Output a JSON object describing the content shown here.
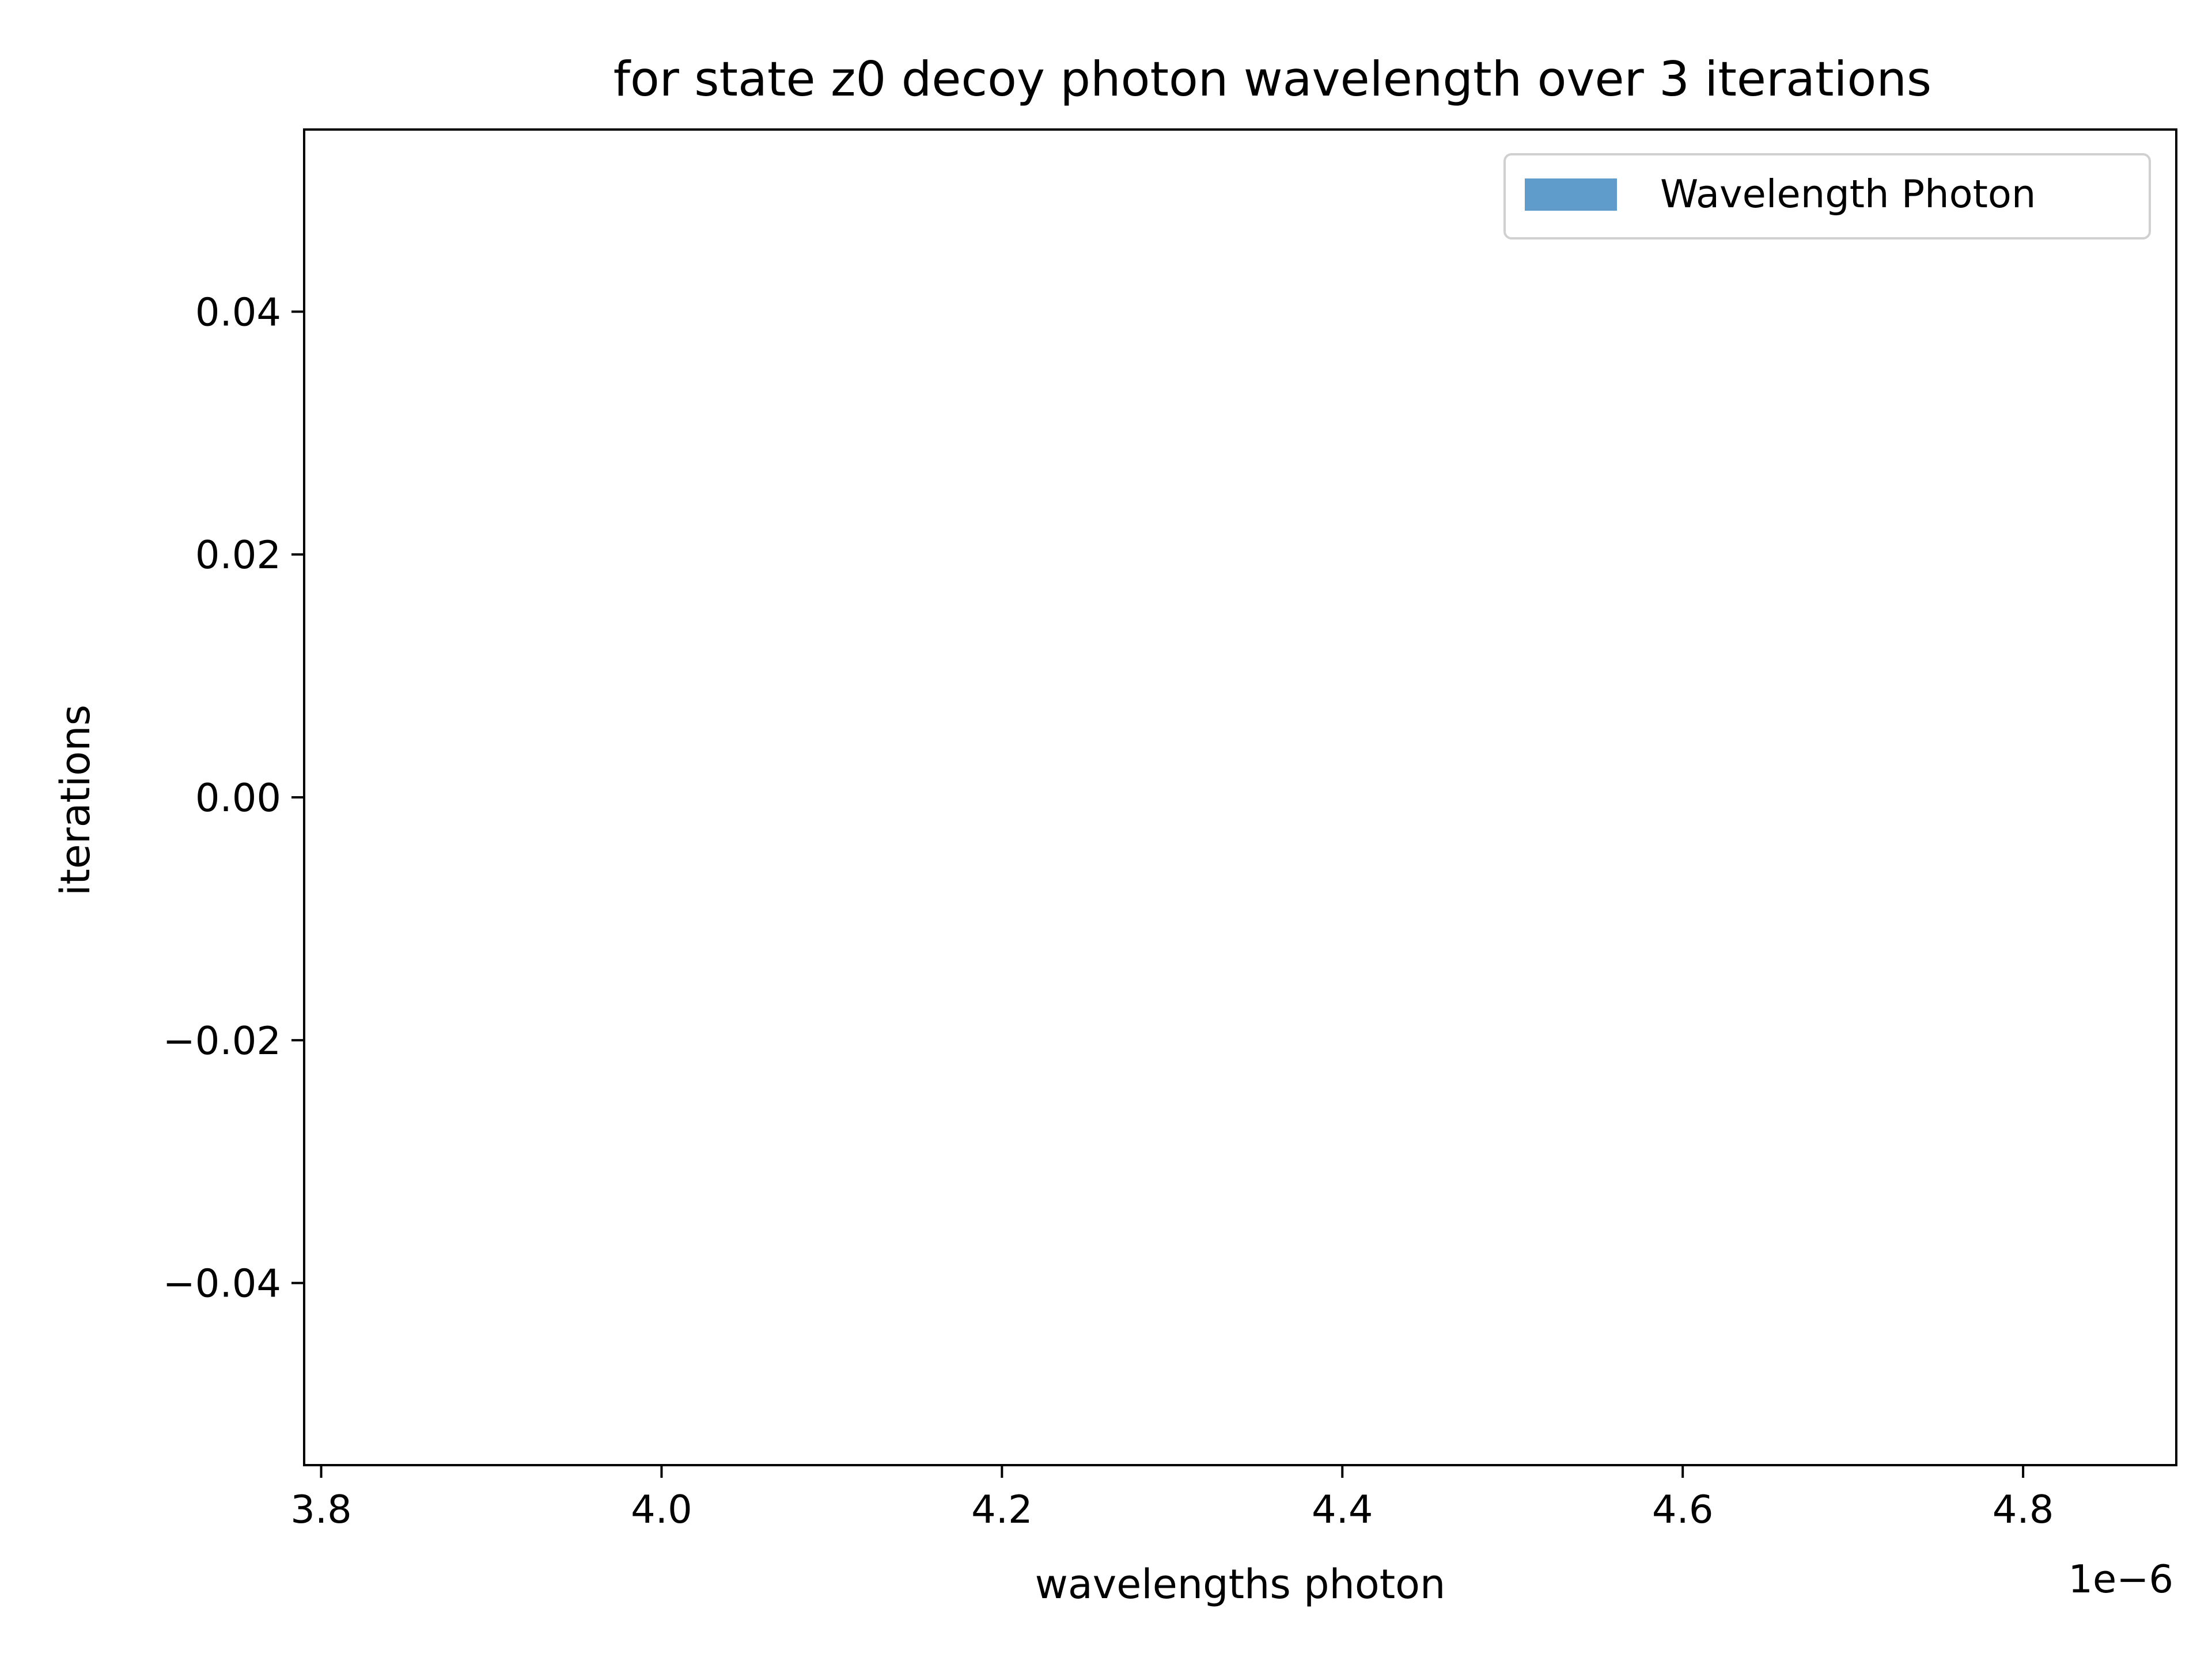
{
  "chart_data": {
    "type": "bar",
    "title": "for state z0 decoy photon wavelength over 3 iterations",
    "xlabel": "wavelengths photon",
    "ylabel": "iterations",
    "x_offset_label": "1e−6",
    "xlim": [
      3.79,
      4.89
    ],
    "ylim": [
      -0.055,
      0.055
    ],
    "x_ticks": [
      {
        "value": 3.8,
        "label": "3.8"
      },
      {
        "value": 4.0,
        "label": "4.0"
      },
      {
        "value": 4.2,
        "label": "4.2"
      },
      {
        "value": 4.4,
        "label": "4.4"
      },
      {
        "value": 4.6,
        "label": "4.6"
      },
      {
        "value": 4.8,
        "label": "4.8"
      }
    ],
    "y_ticks": [
      {
        "value": 0.04,
        "label": "0.04"
      },
      {
        "value": 0.02,
        "label": "0.02"
      },
      {
        "value": 0.0,
        "label": "0.00"
      },
      {
        "value": -0.02,
        "label": "−0.02"
      },
      {
        "value": -0.04,
        "label": "−0.04"
      }
    ],
    "grid": false,
    "legend": {
      "position": "top-right",
      "entries": [
        "Wavelength Photon"
      ]
    },
    "series": [
      {
        "name": "Wavelength Photon",
        "color": "#5f9ccb",
        "values": []
      }
    ]
  }
}
